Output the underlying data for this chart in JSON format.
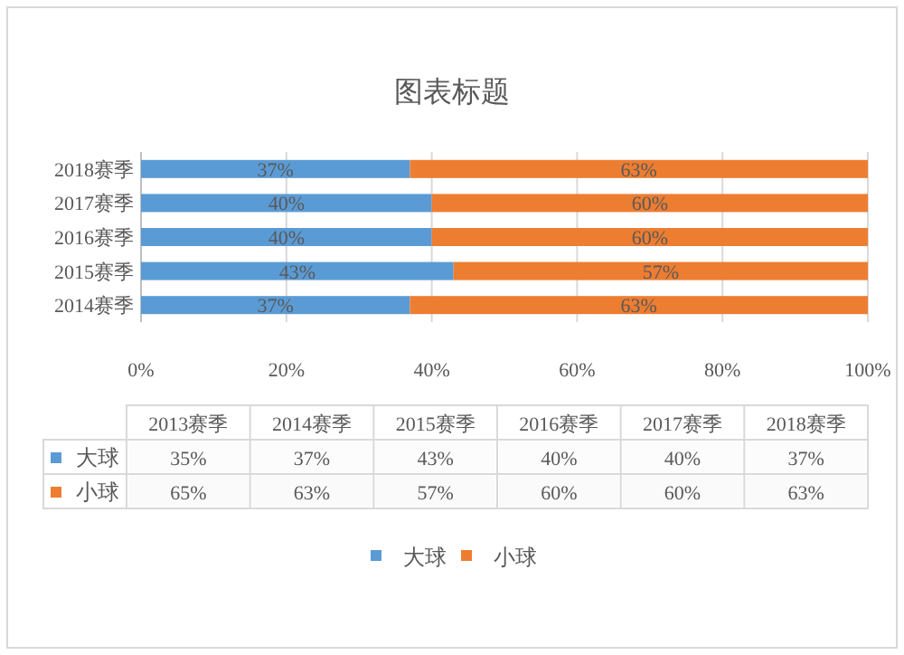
{
  "chart_data": [
    {
      "type": "bar",
      "orientation": "horizontal",
      "stacked": true,
      "title": "图表标题",
      "categories": [
        "2018赛季",
        "2017赛季",
        "2016赛季",
        "2015赛季",
        "2014赛季"
      ],
      "series": [
        {
          "name": "大球",
          "color": "#5b9bd5",
          "values": [
            37,
            40,
            40,
            43,
            37
          ],
          "value_labels": [
            "37%",
            "40%",
            "40%",
            "43%",
            "37%"
          ]
        },
        {
          "name": "小球",
          "color": "#ed7d31",
          "values": [
            63,
            60,
            60,
            57,
            63
          ],
          "value_labels": [
            "63%",
            "60%",
            "60%",
            "57%",
            "63%"
          ]
        }
      ],
      "xlim": [
        0,
        100
      ],
      "xticks": [
        {
          "value": 0,
          "label": "0%"
        },
        {
          "value": 20,
          "label": "20%"
        },
        {
          "value": 40,
          "label": "40%"
        },
        {
          "value": 60,
          "label": "60%"
        },
        {
          "value": 80,
          "label": "80%"
        },
        {
          "value": 100,
          "label": "100%"
        }
      ],
      "grid": "x",
      "legend": "bottom"
    },
    {
      "type": "heatmap",
      "categories": [
        "2013赛季",
        "2014赛季",
        "2015赛季",
        "2016赛季",
        "2017赛季",
        "2018赛季"
      ],
      "y_categories": [
        "大球",
        "小球"
      ],
      "cells": [
        [
          35,
          37,
          43,
          40,
          40,
          37
        ],
        [
          65,
          63,
          57,
          60,
          60,
          63
        ]
      ],
      "cell_labels": [
        [
          "35%",
          "37%",
          "43%",
          "40%",
          "40%",
          "37%"
        ],
        [
          "65%",
          "63%",
          "57%",
          "60%",
          "60%",
          "63%"
        ]
      ]
    }
  ]
}
